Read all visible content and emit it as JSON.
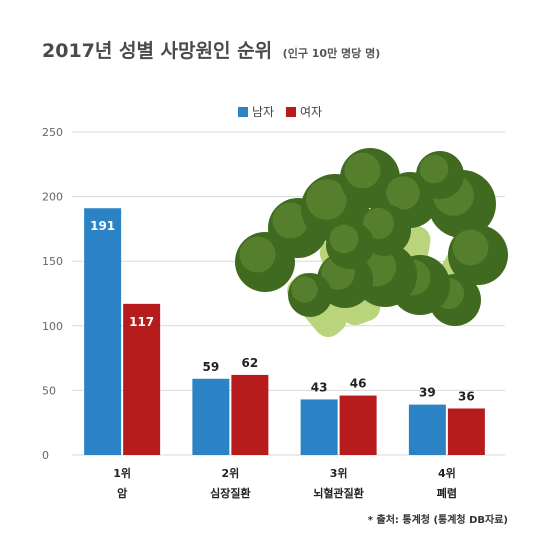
{
  "header": {
    "title": "2017년 성별 사망원인 순위",
    "subtitle": "(인구 10만 명당 명)"
  },
  "footer": {
    "source": "* 출처: 통계청 (통계청 DB자료)"
  },
  "colors": {
    "male": "#2b83c6",
    "female": "#b71c1c",
    "grid": "#d9d9d9",
    "axis_text": "#666666"
  },
  "image": {
    "icon": "broccoli-image"
  },
  "chart_data": {
    "type": "bar",
    "ylim": [
      0,
      250
    ],
    "yticks": [
      0,
      50,
      100,
      150,
      200,
      250
    ],
    "grid": true,
    "legend_position": "top-center",
    "categories": [
      {
        "rank": "1위",
        "name": "암"
      },
      {
        "rank": "2위",
        "name": "심장질환"
      },
      {
        "rank": "3위",
        "name": "뇌혈관질환"
      },
      {
        "rank": "4위",
        "name": "폐렴"
      }
    ],
    "series": [
      {
        "name": "남자",
        "color": "#2b83c6",
        "values": [
          191,
          59,
          43,
          39
        ],
        "label_inside_first": true
      },
      {
        "name": "여자",
        "color": "#b71c1c",
        "values": [
          117,
          62,
          46,
          36
        ],
        "label_inside_first": true
      }
    ]
  }
}
